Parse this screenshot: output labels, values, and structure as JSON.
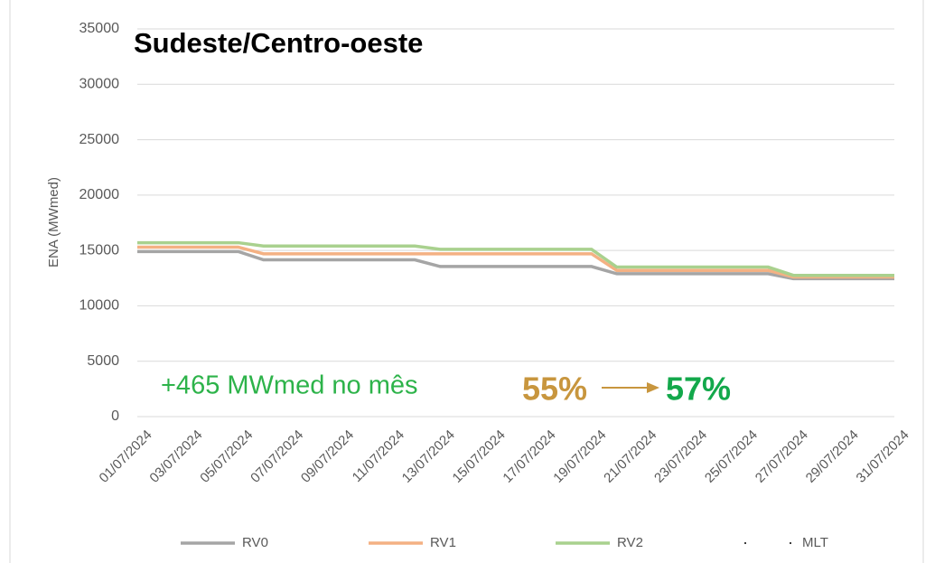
{
  "chart_data": {
    "type": "line",
    "title": "Sudeste/Centro-oeste",
    "y_label": "ENA (MWmed)",
    "categories": [
      "01/07/2024",
      null,
      "03/07/2024",
      null,
      "05/07/2024",
      null,
      "07/07/2024",
      null,
      "09/07/2024",
      null,
      "11/07/2024",
      null,
      "13/07/2024",
      null,
      "15/07/2024",
      null,
      "17/07/2024",
      null,
      "19/07/2024",
      null,
      "21/07/2024",
      null,
      "23/07/2024",
      null,
      "25/07/2024",
      null,
      "27/07/2024",
      null,
      "29/07/2024",
      null,
      "31/07/2024"
    ],
    "series": [
      {
        "name": "RV0",
        "color": "#a5a5a5",
        "values": [
          14900,
          14900,
          14900,
          14900,
          14900,
          14150,
          14150,
          14150,
          14150,
          14150,
          14150,
          14150,
          13550,
          13550,
          13550,
          13550,
          13550,
          13550,
          13550,
          12900,
          12900,
          12900,
          12900,
          12900,
          12900,
          12900,
          12450,
          12450,
          12450,
          12450,
          12450
        ]
      },
      {
        "name": "RV1",
        "color": "#f4b183",
        "values": [
          15300,
          15300,
          15300,
          15300,
          15300,
          14700,
          14700,
          14700,
          14700,
          14700,
          14700,
          14700,
          14700,
          14700,
          14700,
          14700,
          14700,
          14700,
          14700,
          13200,
          13200,
          13200,
          13200,
          13200,
          13200,
          13200,
          12600,
          12600,
          12600,
          12600,
          12600
        ]
      },
      {
        "name": "RV2",
        "color": "#a9d18e",
        "values": [
          15700,
          15700,
          15700,
          15700,
          15700,
          15400,
          15400,
          15400,
          15400,
          15400,
          15400,
          15400,
          15100,
          15100,
          15100,
          15100,
          15100,
          15100,
          15100,
          13500,
          13500,
          13500,
          13500,
          13500,
          13500,
          13500,
          12750,
          12750,
          12750,
          12750,
          12750
        ]
      },
      {
        "name": "MLT",
        "color": "#000000",
        "values": [
          null,
          null,
          null,
          null,
          null,
          null,
          null,
          null,
          null,
          null,
          null,
          null,
          null,
          null,
          null,
          null,
          null,
          null,
          null,
          null,
          null,
          null,
          null,
          null,
          null,
          null,
          null,
          null,
          null,
          null,
          null
        ]
      }
    ],
    "ylim": [
      0,
      35000
    ],
    "yticks": [
      0,
      5000,
      10000,
      15000,
      20000,
      25000,
      30000,
      35000
    ],
    "grid": true,
    "legend": "bottom",
    "annotations": {
      "gain": "+465 MWmed no mês",
      "from": "55%",
      "to": "57%"
    }
  }
}
